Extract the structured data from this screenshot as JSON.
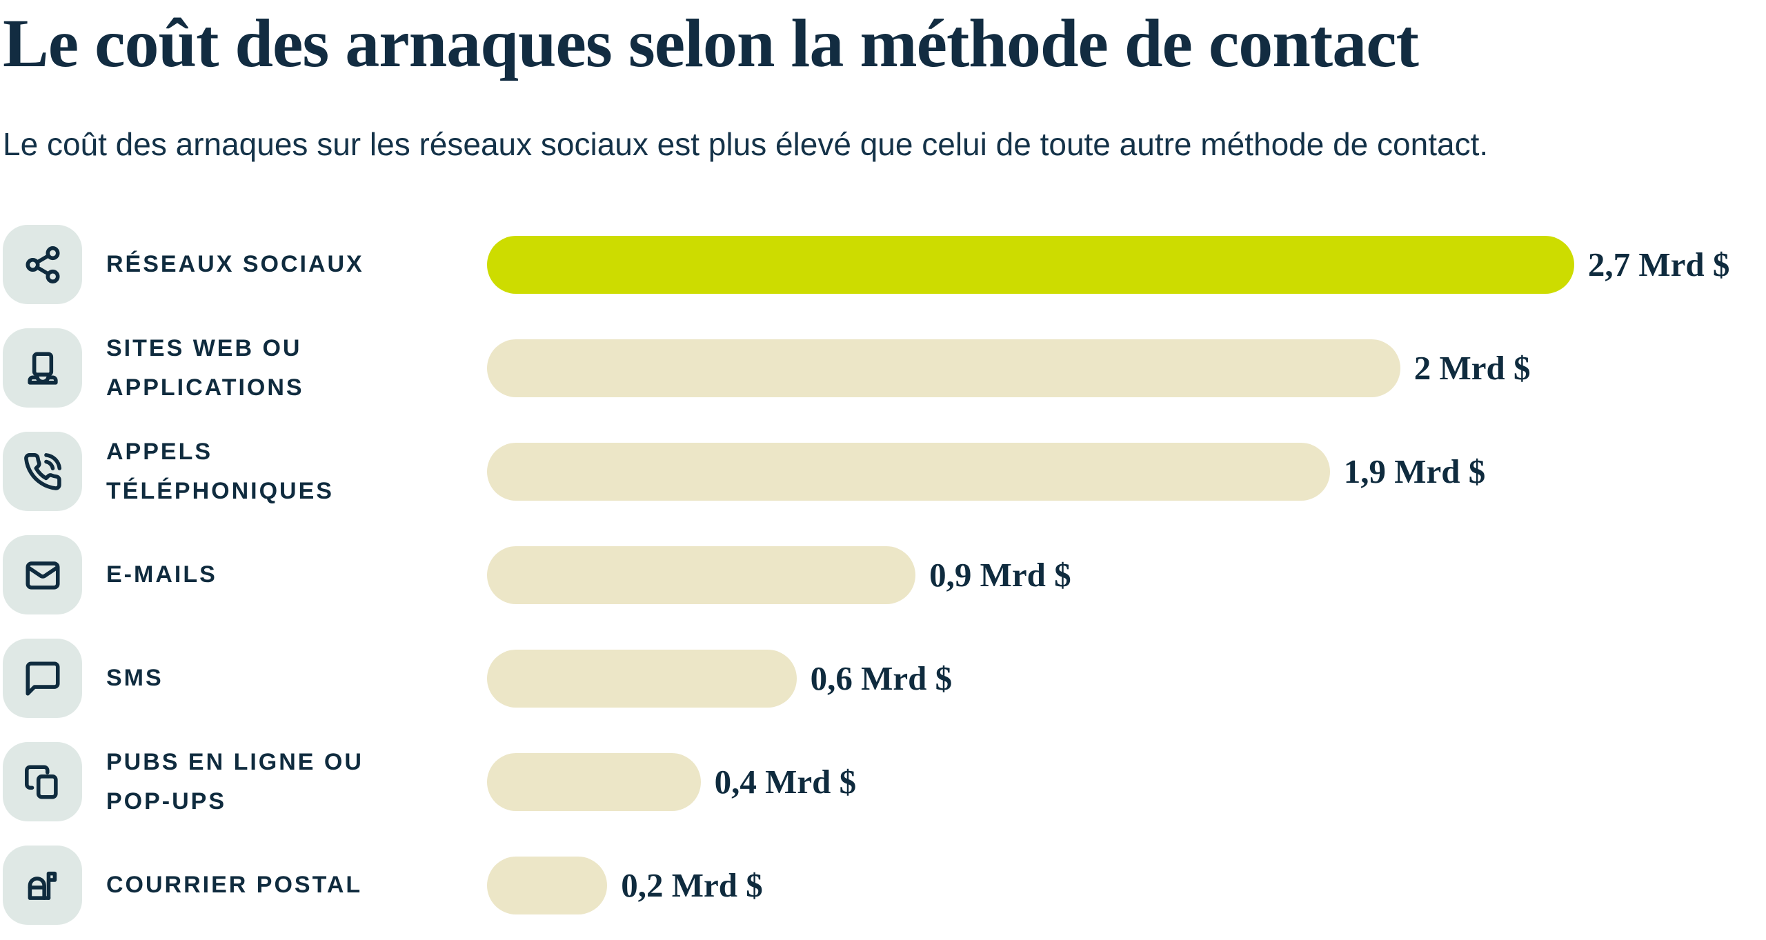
{
  "header": {
    "title": "Le coût des arnaques selon la méthode de contact",
    "subtitle": "Le coût des arnaques sur les réseaux sociaux est plus élevé que celui de toute autre méthode de contact."
  },
  "colors": {
    "text_navy": "#0f2b3e",
    "bar_highlight": "#cddc00",
    "bar_default": "#ece6c7",
    "icon_tile_bg": "#dfe8e5",
    "background": "#ffffff"
  },
  "chart_data": {
    "type": "bar",
    "orientation": "horizontal",
    "title": "Le coût des arnaques selon la méthode de contact",
    "unit": "Mrd $",
    "categories": [
      "Réseaux sociaux",
      "Sites web ou applications",
      "Appels téléphoniques",
      "E-mails",
      "SMS",
      "Pubs en ligne ou pop-ups",
      "Courrier postal"
    ],
    "values": [
      2.7,
      2.0,
      1.9,
      0.9,
      0.6,
      0.4,
      0.2
    ],
    "value_labels": [
      "2,7 Mrd $",
      "2 Mrd $",
      "1,9 Mrd $",
      "0,9 Mrd $",
      "0,6 Mrd $",
      "0,4 Mrd $",
      "0,2 Mrd $"
    ],
    "highlighted_index": 0,
    "xlim": [
      0,
      2.7
    ],
    "grid": false,
    "legend": false,
    "bar_width_pct": [
      85,
      71.4,
      65.9,
      33.5,
      24.2,
      16.7,
      9.4
    ]
  },
  "rows": [
    {
      "icon": "share-icon",
      "label_lines": {
        "0": "RÉSEAUX SOCIAUX"
      },
      "value": "2,7 Mrd $"
    },
    {
      "icon": "laptop-icon",
      "label_lines": {
        "0": "SITES WEB OU",
        "1": "APPLICATIONS"
      },
      "value": "2 Mrd $"
    },
    {
      "icon": "phone-call-icon",
      "label_lines": {
        "0": "APPELS",
        "1": "TÉLÉPHONIQUES"
      },
      "value": "1,9 Mrd $"
    },
    {
      "icon": "mail-icon",
      "label_lines": {
        "0": "E-MAILS"
      },
      "value": "0,9 Mrd $"
    },
    {
      "icon": "message-icon",
      "label_lines": {
        "0": "SMS"
      },
      "value": "0,6 Mrd $"
    },
    {
      "icon": "copy-icon",
      "label_lines": {
        "0": "PUBS EN LIGNE OU",
        "1": "POP-UPS"
      },
      "value": "0,4 Mrd $"
    },
    {
      "icon": "mailbox-icon",
      "label_lines": {
        "0": "COURRIER POSTAL"
      },
      "value": "0,2 Mrd $"
    }
  ]
}
